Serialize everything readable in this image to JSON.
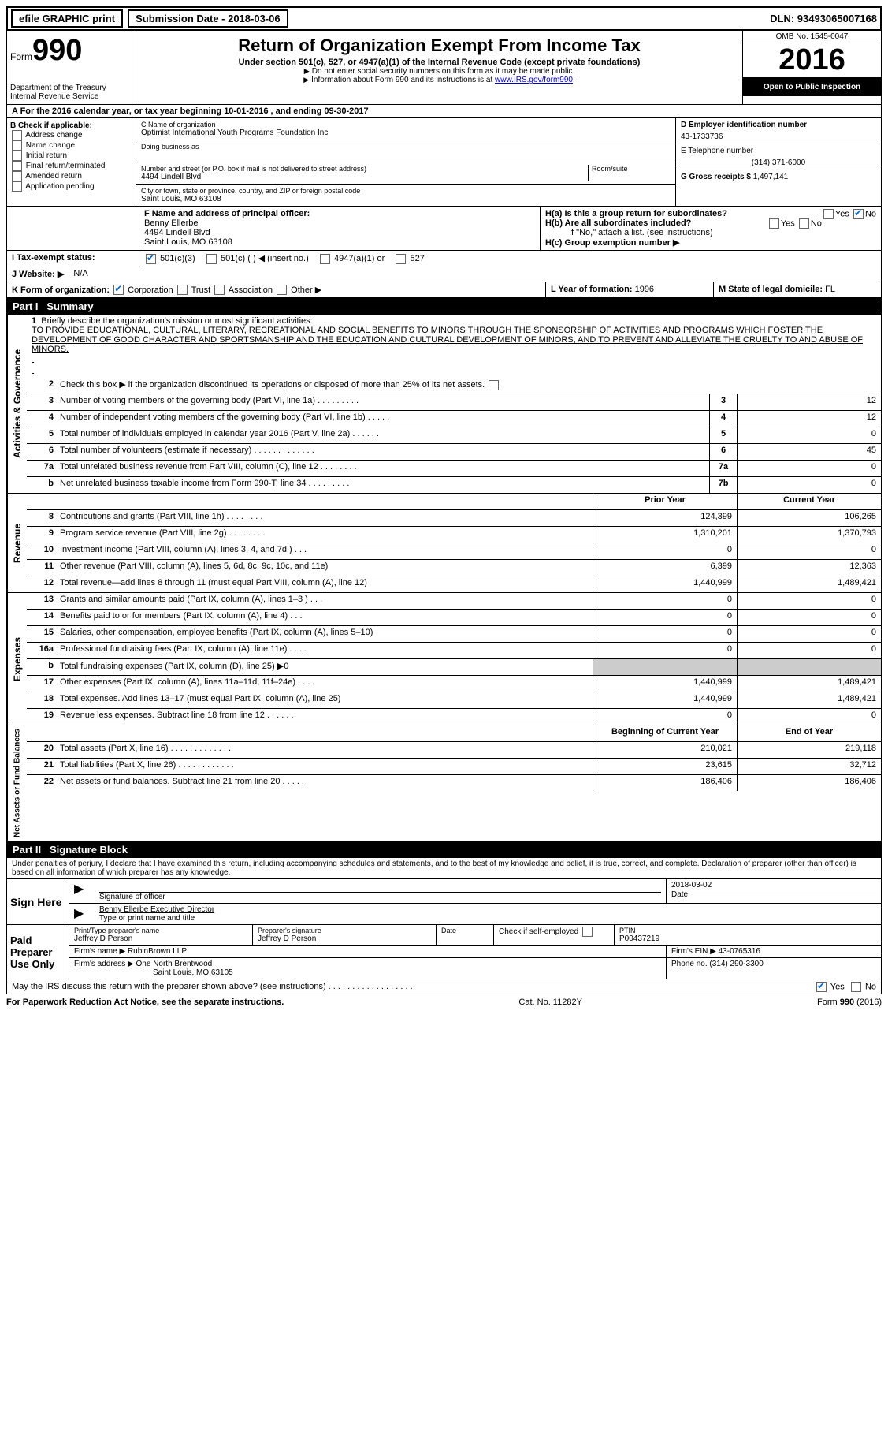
{
  "topbar": {
    "efile_label": "efile GRAPHIC print",
    "submission_label": "Submission Date - 2018-03-06",
    "dln_label": "DLN: 93493065007168"
  },
  "header": {
    "form_label": "Form",
    "form_number": "990",
    "dept": "Department of the Treasury",
    "irs": "Internal Revenue Service",
    "title": "Return of Organization Exempt From Income Tax",
    "subtitle": "Under section 501(c), 527, or 4947(a)(1) of the Internal Revenue Code (except private foundations)",
    "note1": "Do not enter social security numbers on this form as it may be made public.",
    "note2_pre": "Information about Form 990 and its instructions is at ",
    "note2_link": "www.IRS.gov/form990",
    "omb": "OMB No. 1545-0047",
    "year": "2016",
    "open": "Open to Public Inspection"
  },
  "line_a": "A   For the 2016 calendar year, or tax year beginning 10-01-2016    , and ending 09-30-2017",
  "b": {
    "label": "B Check if applicable:",
    "items": [
      "Address change",
      "Name change",
      "Initial return",
      "Final return/terminated",
      "Amended return",
      "Application pending"
    ]
  },
  "c": {
    "name_label": "C Name of organization",
    "name": "Optimist International Youth Programs Foundation Inc",
    "dba_label": "Doing business as",
    "addr_label": "Number and street (or P.O. box if mail is not delivered to street address)",
    "room_label": "Room/suite",
    "addr": "4494 Lindell Blvd",
    "city_label": "City or town, state or province, country, and ZIP or foreign postal code",
    "city": "Saint Louis, MO  63108"
  },
  "d": {
    "ein_label": "D Employer identification number",
    "ein": "43-1733736",
    "phone_label": "E Telephone number",
    "phone": "(314) 371-6000",
    "gross_label": "G Gross receipts $",
    "gross": "1,497,141"
  },
  "f": {
    "label": "F  Name and address of principal officer:",
    "name": "Benny Ellerbe",
    "addr1": "4494 Lindell Blvd",
    "addr2": "Saint Louis, MO  63108"
  },
  "h": {
    "a": "H(a)  Is this a group return for subordinates?",
    "b": "H(b)  Are all subordinates included?",
    "b_note": "If \"No,\" attach a list. (see instructions)",
    "c": "H(c)  Group exemption number ▶",
    "yes": "Yes",
    "no": "No"
  },
  "i": {
    "label": "I   Tax-exempt status:",
    "o1": "501(c)(3)",
    "o2": "501(c) (   ) ◀ (insert no.)",
    "o3": "4947(a)(1) or",
    "o4": "527"
  },
  "j": {
    "label": "J  Website: ▶",
    "value": "N/A"
  },
  "k": {
    "label": "K Form of organization:",
    "o1": "Corporation",
    "o2": "Trust",
    "o3": "Association",
    "o4": "Other ▶"
  },
  "l": {
    "label": "L Year of formation:",
    "value": "1996"
  },
  "m": {
    "label": "M State of legal domicile:",
    "value": "FL"
  },
  "part1": {
    "title": "Summary",
    "label": "Part I",
    "mission_label": "Briefly describe the organization's mission or most significant activities:",
    "mission": "TO PROVIDE EDUCATIONAL, CULTURAL, LITERARY, RECREATIONAL AND SOCIAL BENEFITS TO MINORS THROUGH THE SPONSORSHIP OF ACTIVITIES AND PROGRAMS WHICH FOSTER THE DEVELOPMENT OF GOOD CHARACTER AND SPORTSMANSHIP AND THE EDUCATION AND CULTURAL DEVELOPMENT OF MINORS, AND TO PREVENT AND ALLEVIATE THE CRUELTY TO AND ABUSE OF MINORS.",
    "line2": "Check this box ▶         if the organization discontinued its operations or disposed of more than 25% of its net assets.",
    "lines_single": [
      {
        "n": "3",
        "d": "Number of voting members of the governing body (Part VI, line 1a)   .   .   .   .   .   .   .   .   .",
        "b": "3",
        "v": "12"
      },
      {
        "n": "4",
        "d": "Number of independent voting members of the governing body (Part VI, line 1b)   .   .   .   .   .",
        "b": "4",
        "v": "12"
      },
      {
        "n": "5",
        "d": "Total number of individuals employed in calendar year 2016 (Part V, line 2a)   .   .   .   .   .   .",
        "b": "5",
        "v": "0"
      },
      {
        "n": "6",
        "d": "Total number of volunteers (estimate if necessary)   .   .   .   .   .   .   .   .   .   .   .   .   .",
        "b": "6",
        "v": "45"
      },
      {
        "n": "7a",
        "d": "Total unrelated business revenue from Part VIII, column (C), line 12   .   .   .   .   .   .   .   .",
        "b": "7a",
        "v": "0"
      },
      {
        "n": "b",
        "d": "Net unrelated business taxable income from Form 990-T, line 34   .   .   .   .   .   .   .   .   .",
        "b": "7b",
        "v": "0"
      }
    ],
    "col_headers": {
      "prior": "Prior Year",
      "current": "Current Year"
    },
    "revenue": [
      {
        "n": "8",
        "d": "Contributions and grants (Part VIII, line 1h)   .   .   .   .   .   .   .   .",
        "p": "124,399",
        "c": "106,265"
      },
      {
        "n": "9",
        "d": "Program service revenue (Part VIII, line 2g)   .   .   .   .   .   .   .   .",
        "p": "1,310,201",
        "c": "1,370,793"
      },
      {
        "n": "10",
        "d": "Investment income (Part VIII, column (A), lines 3, 4, and 7d )   .   .   .",
        "p": "0",
        "c": "0"
      },
      {
        "n": "11",
        "d": "Other revenue (Part VIII, column (A), lines 5, 6d, 8c, 9c, 10c, and 11e)",
        "p": "6,399",
        "c": "12,363"
      },
      {
        "n": "12",
        "d": "Total revenue—add lines 8 through 11 (must equal Part VIII, column (A), line 12)",
        "p": "1,440,999",
        "c": "1,489,421"
      }
    ],
    "expenses": [
      {
        "n": "13",
        "d": "Grants and similar amounts paid (Part IX, column (A), lines 1–3 )   .   .   .",
        "p": "0",
        "c": "0"
      },
      {
        "n": "14",
        "d": "Benefits paid to or for members (Part IX, column (A), line 4)   .   .   .",
        "p": "0",
        "c": "0"
      },
      {
        "n": "15",
        "d": "Salaries, other compensation, employee benefits (Part IX, column (A), lines 5–10)",
        "p": "0",
        "c": "0"
      },
      {
        "n": "16a",
        "d": "Professional fundraising fees (Part IX, column (A), line 11e)   .   .   .   .",
        "p": "0",
        "c": "0"
      },
      {
        "n": "b",
        "d": "Total fundraising expenses (Part IX, column (D), line 25) ▶0",
        "p": "",
        "c": "",
        "shaded": true
      },
      {
        "n": "17",
        "d": "Other expenses (Part IX, column (A), lines 11a–11d, 11f–24e)   .   .   .   .",
        "p": "1,440,999",
        "c": "1,489,421"
      },
      {
        "n": "18",
        "d": "Total expenses. Add lines 13–17 (must equal Part IX, column (A), line 25)",
        "p": "1,440,999",
        "c": "1,489,421"
      },
      {
        "n": "19",
        "d": "Revenue less expenses. Subtract line 18 from line 12   .   .   .   .   .   .",
        "p": "0",
        "c": "0"
      }
    ],
    "net_headers": {
      "begin": "Beginning of Current Year",
      "end": "End of Year"
    },
    "net": [
      {
        "n": "20",
        "d": "Total assets (Part X, line 16)   .   .   .   .   .   .   .   .   .   .   .   .   .",
        "p": "210,021",
        "c": "219,118"
      },
      {
        "n": "21",
        "d": "Total liabilities (Part X, line 26)   .   .   .   .   .   .   .   .   .   .   .   .",
        "p": "23,615",
        "c": "32,712"
      },
      {
        "n": "22",
        "d": "Net assets or fund balances. Subtract line 21 from line 20   .   .   .   .   .",
        "p": "186,406",
        "c": "186,406"
      }
    ]
  },
  "part2": {
    "label": "Part II",
    "title": "Signature Block",
    "perjury": "Under penalties of perjury, I declare that I have examined this return, including accompanying schedules and statements, and to the best of my knowledge and belief, it is true, correct, and complete. Declaration of preparer (other than officer) is based on all information of which preparer has any knowledge.",
    "sign_here": "Sign Here",
    "sig_officer": "Signature of officer",
    "date_label": "Date",
    "date": "2018-03-02",
    "officer_name": "Benny Ellerbe  Executive Director",
    "type_name": "Type or print name and title",
    "paid": "Paid Preparer Use Only",
    "prep_name_label": "Print/Type preparer's name",
    "prep_name": "Jeffrey D Person",
    "prep_sig_label": "Preparer's signature",
    "prep_sig": "Jeffrey D Person",
    "check_self": "Check         if self-employed",
    "ptin_label": "PTIN",
    "ptin": "P00437219",
    "firm_name_label": "Firm's name     ▶",
    "firm_name": "RubinBrown LLP",
    "firm_ein_label": "Firm's EIN ▶",
    "firm_ein": "43-0765316",
    "firm_addr_label": "Firm's address ▶",
    "firm_addr1": "One North Brentwood",
    "firm_addr2": "Saint Louis, MO  63105",
    "firm_phone_label": "Phone no.",
    "firm_phone": "(314) 290-3300",
    "discuss": "May the IRS discuss this return with the preparer shown above? (see instructions)   .   .   .   .   .   .   .   .   .   .   .   .   .   .   .   .   .   ."
  },
  "footer": {
    "left": "For Paperwork Reduction Act Notice, see the separate instructions.",
    "mid": "Cat. No. 11282Y",
    "right_pre": "Form ",
    "right_form": "990",
    "right_post": " (2016)"
  },
  "labels": {
    "yes": "Yes",
    "no": "No"
  }
}
